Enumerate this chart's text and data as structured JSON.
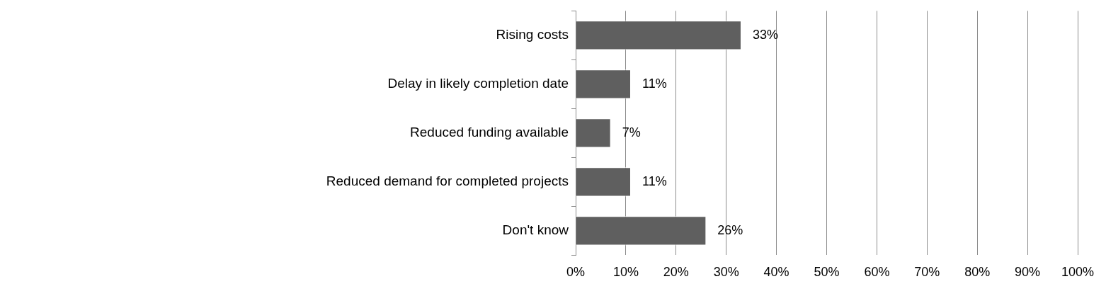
{
  "chart_data": {
    "type": "bar",
    "orientation": "horizontal",
    "categories": [
      "Rising costs",
      "Delay in likely completion date",
      "Reduced funding available",
      "Reduced demand for completed projects",
      "Don't know"
    ],
    "values": [
      33,
      11,
      7,
      11,
      26
    ],
    "color": "#5f5f5f",
    "xlim": [
      0,
      100
    ],
    "xticks": [
      {
        "value": 0,
        "label": "0%"
      },
      {
        "value": 10,
        "label": "10%"
      },
      {
        "value": 20,
        "label": "20%"
      },
      {
        "value": 30,
        "label": "30%"
      },
      {
        "value": 40,
        "label": "40%"
      },
      {
        "value": 50,
        "label": "50%"
      },
      {
        "value": 60,
        "label": "60%"
      },
      {
        "value": 70,
        "label": "70%"
      },
      {
        "value": 80,
        "label": "80%"
      },
      {
        "value": 90,
        "label": "90%"
      },
      {
        "value": 100,
        "label": "100%"
      }
    ],
    "grid": "x",
    "legend": false,
    "value_labels": [
      "33%",
      "11%",
      "7%",
      "11%",
      "26%"
    ]
  }
}
